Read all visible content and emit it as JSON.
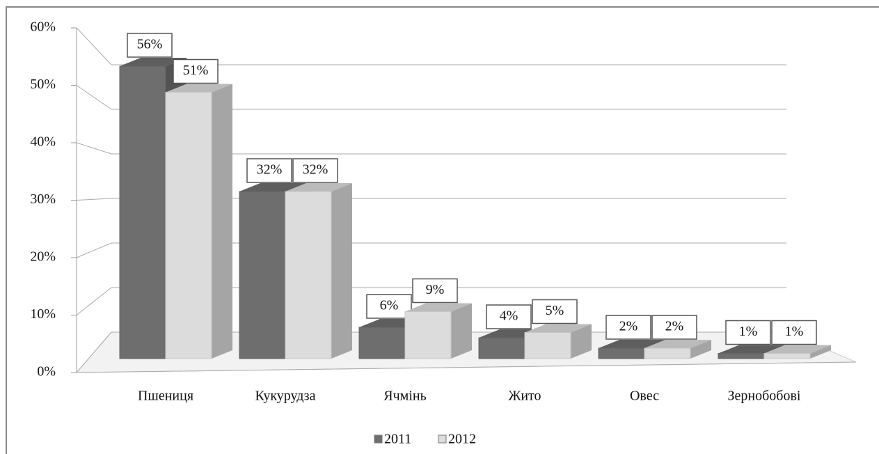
{
  "chart_data": {
    "type": "bar3d",
    "categories": [
      "Пшениця",
      "Кукурудза",
      "Ячмінь",
      "Жито",
      "Овес",
      "Зернобобові"
    ],
    "series": [
      {
        "name": "2011",
        "color": "#6e6e6e",
        "values": [
          56,
          32,
          6,
          4,
          2,
          1
        ],
        "value_labels": [
          "56%",
          "32%",
          "6%",
          "4%",
          "2%",
          "1%"
        ]
      },
      {
        "name": "2012",
        "color": "#dcdcdc",
        "values": [
          51,
          32,
          9,
          5,
          2,
          1
        ],
        "value_labels": [
          "51%",
          "32%",
          "9%",
          "5%",
          "2%",
          "1%"
        ]
      }
    ],
    "ylim": [
      0,
      60
    ],
    "yticks": [
      {
        "value": 0,
        "label": "0%"
      },
      {
        "value": 10,
        "label": "10%"
      },
      {
        "value": 20,
        "label": "20%"
      },
      {
        "value": 30,
        "label": "30%"
      },
      {
        "value": 40,
        "label": "40%"
      },
      {
        "value": 50,
        "label": "50%"
      },
      {
        "value": 60,
        "label": "60%"
      }
    ],
    "grid": true,
    "legend": "bottom"
  }
}
